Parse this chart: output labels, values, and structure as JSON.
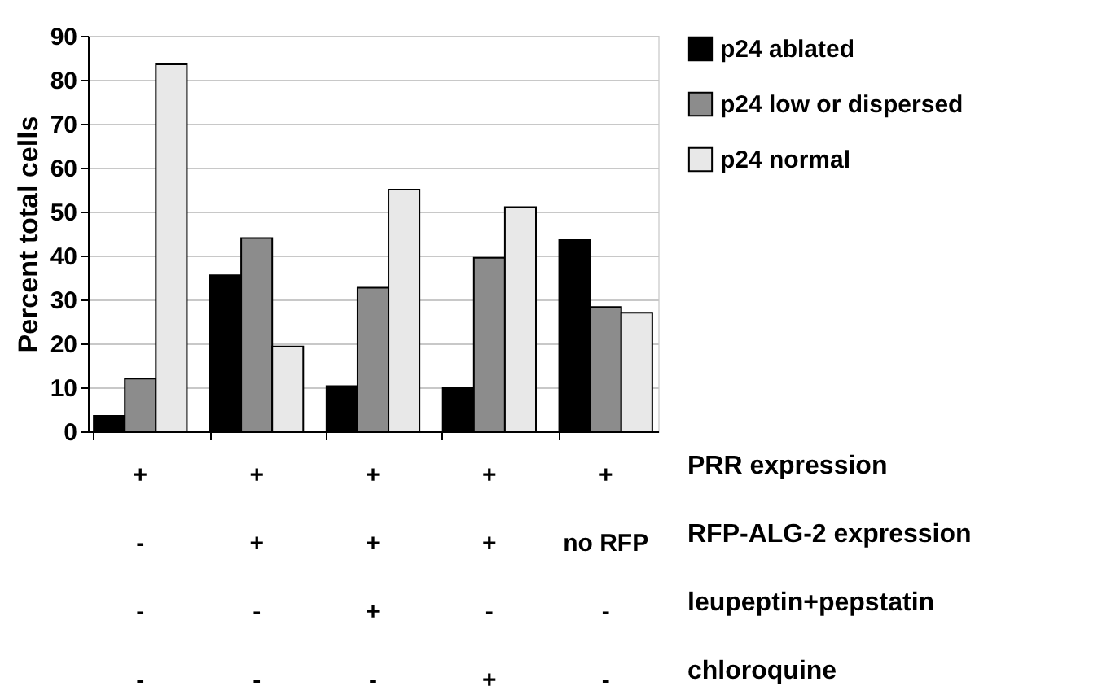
{
  "chart_data": {
    "type": "bar",
    "ylabel": "Percent total cells",
    "categories": [
      "+\n-\n-\n-",
      "+\n+\n-\n-",
      "+\n+\n+\n-",
      "+\n+\n-\n+",
      "+\nno RFP\n-\n-"
    ],
    "series": [
      {
        "name": "p24 ablated",
        "color": "#000000",
        "values": [
          3.5,
          35.5,
          10.3,
          9.8,
          43.5
        ]
      },
      {
        "name": "p24 low or dispersed",
        "color": "#8c8c8c",
        "values": [
          12,
          44,
          32.7,
          39.5,
          28.3
        ]
      },
      {
        "name": "p24 normal",
        "color": "#e8e8e8",
        "values": [
          83.5,
          19.3,
          55,
          51,
          27
        ]
      }
    ],
    "ylim": [
      0,
      90
    ],
    "yticks": [
      0,
      10,
      20,
      30,
      40,
      50,
      60,
      70,
      80,
      90
    ],
    "grid": "y",
    "legend": "right",
    "annotations": [
      "PRR expression",
      "RFP-ALG-2 expression",
      "leupeptin+pepstatin",
      "chloroquine"
    ]
  }
}
